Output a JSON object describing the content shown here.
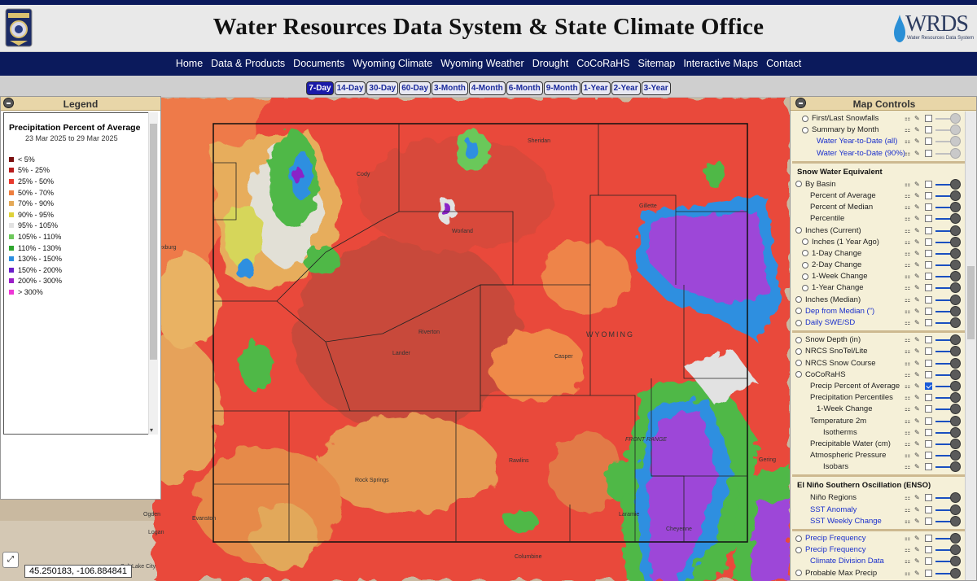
{
  "header": {
    "title": "Water Resources Data System & State Climate Office",
    "logo_text": "WRDS",
    "logo_subtext": "Water Resources Data System"
  },
  "nav": [
    "Home",
    "Data & Products",
    "Documents",
    "Wyoming Climate",
    "Wyoming Weather",
    "Drought",
    "CoCoRaHS",
    "Sitemap",
    "Interactive Maps",
    "Contact"
  ],
  "timeline": {
    "buttons": [
      "7-Day",
      "14-Day",
      "30-Day",
      "60-Day",
      "3-Month",
      "4-Month",
      "6-Month",
      "9-Month",
      "1-Year",
      "2-Year",
      "3-Year"
    ],
    "active": "7-Day"
  },
  "legend": {
    "panel_title": "Legend",
    "title": "Precipitation Percent of Average",
    "dates": "23 Mar 2025 to 29 Mar 2025",
    "items": [
      {
        "label": "< 5%",
        "color": "#7a1010"
      },
      {
        "label": "5% - 25%",
        "color": "#b81c1c"
      },
      {
        "label": "25% - 50%",
        "color": "#e8392d"
      },
      {
        "label": "50% - 70%",
        "color": "#ee7e3e"
      },
      {
        "label": "70% - 90%",
        "color": "#e4a957"
      },
      {
        "label": "90% - 95%",
        "color": "#ded23a"
      },
      {
        "label": "95% - 105%",
        "color": "#e2e2e2"
      },
      {
        "label": "105% - 110%",
        "color": "#6dc85b"
      },
      {
        "label": "110% - 130%",
        "color": "#2ea52e"
      },
      {
        "label": "130% - 150%",
        "color": "#2b8ee0"
      },
      {
        "label": "150% - 200%",
        "color": "#6a1fc9"
      },
      {
        "label": "200% - 300%",
        "color": "#9b1ec8"
      },
      {
        "label": "> 300%",
        "color": "#ee37d6"
      }
    ]
  },
  "map": {
    "coordinates": "45.250183, -106.884841",
    "places": [
      "Sheridan",
      "Cody",
      "Gillette",
      "Worland",
      "Riverton",
      "Lander",
      "Casper",
      "WYOMING",
      "Rock Springs",
      "Rawlins",
      "Laramie",
      "Cheyenne",
      "Evanston",
      "Salt Lake City",
      "Ogden",
      "Logan",
      "Rexburg",
      "Gering",
      "Columbine",
      "FRONT RANGE",
      "Douglas"
    ]
  },
  "controls": {
    "panel_title": "Map Controls",
    "top_rows": [
      {
        "label": "First/Last Snowfalls",
        "type": "radio",
        "indent": 1,
        "blue": false
      },
      {
        "label": "Summary by Month",
        "type": "radio",
        "indent": 1,
        "blue": false
      },
      {
        "label": "Water Year-to-Date (all)",
        "type": "none",
        "indent": 2,
        "blue": true
      },
      {
        "label": "Water Year-to-Date (90%)",
        "type": "none",
        "indent": 2,
        "blue": true
      }
    ],
    "snow_section_title": "Snow Water Equivalent",
    "snow_rows": [
      {
        "label": "By Basin",
        "type": "radio",
        "indent": 0,
        "blue": false
      },
      {
        "label": "Percent of Average",
        "type": "none",
        "indent": 1,
        "blue": false
      },
      {
        "label": "Percent of Median",
        "type": "none",
        "indent": 1,
        "blue": false
      },
      {
        "label": "Percentile",
        "type": "none",
        "indent": 1,
        "blue": false
      },
      {
        "label": "Inches (Current)",
        "type": "radio",
        "indent": 0,
        "blue": false
      },
      {
        "label": "Inches (1 Year Ago)",
        "type": "radio",
        "indent": 1,
        "blue": false
      },
      {
        "label": "1-Day Change",
        "type": "radio",
        "indent": 1,
        "blue": false
      },
      {
        "label": "2-Day Change",
        "type": "radio",
        "indent": 1,
        "blue": false
      },
      {
        "label": "1-Week Change",
        "type": "radio",
        "indent": 1,
        "blue": false
      },
      {
        "label": "1-Year Change",
        "type": "radio",
        "indent": 1,
        "blue": false
      },
      {
        "label": "Inches (Median)",
        "type": "radio",
        "indent": 0,
        "blue": false
      },
      {
        "label": "Dep from Median (\")",
        "type": "radio",
        "indent": 0,
        "blue": true
      },
      {
        "label": "Daily SWE/SD",
        "type": "radio",
        "indent": 0,
        "blue": true
      }
    ],
    "mid_rows": [
      {
        "label": "Snow Depth (in)",
        "type": "radio",
        "indent": 0,
        "blue": false
      },
      {
        "label": "NRCS SnoTel/Lite",
        "type": "radio",
        "indent": 0,
        "blue": false
      },
      {
        "label": "NRCS Snow Course",
        "type": "radio",
        "indent": 0,
        "blue": false
      },
      {
        "label": "CoCoRaHS",
        "type": "radio",
        "indent": 0,
        "blue": false
      },
      {
        "label": "Precip Percent of Average",
        "type": "none",
        "indent": 1,
        "blue": false,
        "checked": true
      },
      {
        "label": "Precipitation Percentiles",
        "type": "none",
        "indent": 1,
        "blue": false
      },
      {
        "label": "1-Week Change",
        "type": "none",
        "indent": 2,
        "blue": false
      },
      {
        "label": "Temperature 2m",
        "type": "none",
        "indent": 1,
        "blue": false
      },
      {
        "label": "Isotherms",
        "type": "none",
        "indent": 3,
        "blue": false
      },
      {
        "label": "Precipitable Water (cm)",
        "type": "none",
        "indent": 1,
        "blue": false
      },
      {
        "label": "Atmospheric Pressure",
        "type": "none",
        "indent": 1,
        "blue": false
      },
      {
        "label": "Isobars",
        "type": "none",
        "indent": 3,
        "blue": false
      }
    ],
    "enso_section_title": "El Niño Southern Oscillation (ENSO)",
    "enso_rows": [
      {
        "label": "Niño Regions",
        "type": "none",
        "indent": 1,
        "blue": false
      },
      {
        "label": "SST Anomaly",
        "type": "none",
        "indent": 1,
        "blue": true
      },
      {
        "label": "SST Weekly Change",
        "type": "none",
        "indent": 1,
        "blue": true
      }
    ],
    "bottom_rows": [
      {
        "label": "Precip Frequency",
        "type": "radio",
        "indent": 0,
        "blue": true
      },
      {
        "label": "Precip Frequency",
        "type": "radio",
        "indent": 0,
        "blue": true
      },
      {
        "label": "Climate Division Data",
        "type": "none",
        "indent": 1,
        "blue": true
      },
      {
        "label": "Probable Max Precip",
        "type": "radio",
        "indent": 0,
        "blue": false
      }
    ]
  }
}
